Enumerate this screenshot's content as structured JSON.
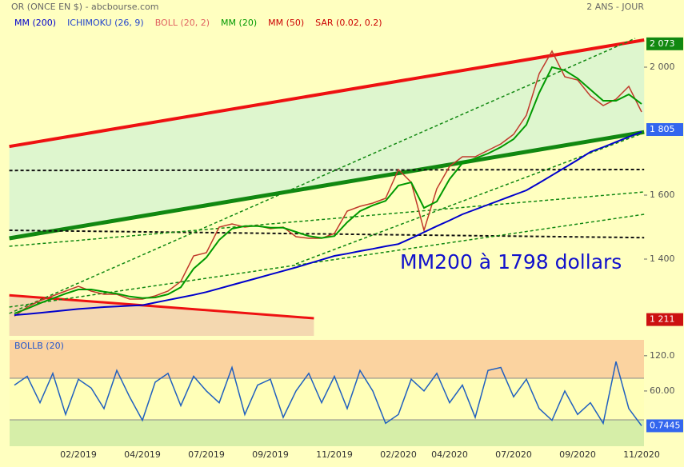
{
  "chart_data": [
    {
      "type": "line",
      "title": "OR (ONCE EN $) - abcbourse.com",
      "subtitle": "2 ANS - JOUR",
      "categories": [
        null,
        null,
        null,
        null,
        null,
        "02/2019",
        null,
        null,
        null,
        null,
        "04/2019",
        null,
        null,
        null,
        null,
        "07/2019",
        null,
        null,
        null,
        null,
        "09/2019",
        null,
        null,
        null,
        null,
        "11/2019",
        null,
        null,
        null,
        null,
        "02/2020",
        null,
        null,
        null,
        "04/2020",
        null,
        null,
        null,
        null,
        "07/2020",
        null,
        null,
        null,
        null,
        "09/2020",
        null,
        null,
        null,
        null,
        "11/2020"
      ],
      "legend": [
        {
          "name": "MM (200)",
          "color": "#0000cc"
        },
        {
          "name": "ICHIMOKU (26, 9)",
          "color": "#2244cc"
        },
        {
          "name": "BOLL (20, 2)",
          "color": "#e06060"
        },
        {
          "name": "MM (20)",
          "color": "#009900"
        },
        {
          "name": "MM (50)",
          "color": "#cc0000"
        },
        {
          "name": "SAR (0.02, 0.2)",
          "color": "#cc0000"
        }
      ],
      "series": [
        {
          "color": "#c0392b",
          "values": [
            1222,
            1250,
            1270,
            1285,
            1300,
            1315,
            1300,
            1290,
            1290,
            1275,
            1275,
            1285,
            1300,
            1330,
            1410,
            1420,
            1500,
            1510,
            1500,
            1505,
            1495,
            1500,
            1470,
            1465,
            1465,
            1480,
            1550,
            1565,
            1575,
            1590,
            1680,
            1640,
            1490,
            1620,
            1690,
            1720,
            1720,
            1740,
            1760,
            1790,
            1850,
            1980,
            2050,
            1970,
            1960,
            1910,
            1880,
            1900,
            1940,
            1860
          ]
        },
        {
          "color": "#009900",
          "values": [
            1230,
            1245,
            1262,
            1277,
            1292,
            1305,
            1305,
            1298,
            1292,
            1283,
            1278,
            1280,
            1290,
            1312,
            1370,
            1405,
            1460,
            1495,
            1503,
            1503,
            1498,
            1498,
            1485,
            1472,
            1466,
            1472,
            1515,
            1550,
            1568,
            1582,
            1630,
            1640,
            1560,
            1580,
            1650,
            1700,
            1715,
            1730,
            1750,
            1775,
            1820,
            1920,
            2000,
            1990,
            1965,
            1930,
            1895,
            1895,
            1915,
            1885
          ]
        },
        {
          "color": "#0000cc",
          "values": [
            1225,
            1228,
            1232,
            1236,
            1240,
            1244,
            1247,
            1250,
            1252,
            1254,
            1256,
            1264,
            1272,
            1280,
            1288,
            1297,
            1308,
            1319,
            1330,
            1341,
            1352,
            1363,
            1374,
            1386,
            1398,
            1410,
            1417,
            1425,
            1432,
            1440,
            1447,
            1465,
            1484,
            1503,
            1521,
            1540,
            1555,
            1570,
            1585,
            1600,
            1615,
            1638,
            1662,
            1686,
            1710,
            1735,
            1750,
            1766,
            1782,
            1798
          ]
        }
      ],
      "trendlines": [
        {
          "color": "#ee1111",
          "width": 4,
          "x": [
            -0.4,
            49.2
          ],
          "y": [
            1752,
            2085
          ]
        },
        {
          "color": "#118811",
          "width": 5,
          "x": [
            -0.4,
            49.2
          ],
          "y": [
            1465,
            1797
          ]
        },
        {
          "color": "#ee1111",
          "width": 3,
          "x": [
            -0.4,
            23.4
          ],
          "y": [
            1287,
            1215
          ]
        },
        {
          "color": "#111111",
          "width": 2,
          "dash": true,
          "x": [
            -0.4,
            49.2
          ],
          "y": [
            1677,
            1680
          ]
        },
        {
          "color": "#111111",
          "width": 2,
          "dash": true,
          "x": [
            -0.4,
            49.2
          ],
          "y": [
            1490,
            1467
          ]
        },
        {
          "color": "#118811",
          "width": 1.5,
          "dash": true,
          "x": [
            -0.4,
            48.5
          ],
          "y": [
            1230,
            2090
          ]
        },
        {
          "color": "#118811",
          "width": 1.5,
          "dash": true,
          "x": [
            -0.4,
            49.2
          ],
          "y": [
            1250,
            1540
          ]
        },
        {
          "color": "#118811",
          "width": 1.5,
          "dash": true,
          "x": [
            -0.4,
            49.2
          ],
          "y": [
            1440,
            1610
          ]
        },
        {
          "color": "#118811",
          "width": 1.5,
          "dash": true,
          "x": [
            22,
            49.2
          ],
          "y": [
            1385,
            1795
          ]
        }
      ],
      "ylim": [
        1160,
        2180
      ],
      "yticks": [
        {
          "value": 2000,
          "label": "2 000"
        },
        {
          "value": 1600,
          "label": "1 600"
        },
        {
          "value": 1400,
          "label": "1 400"
        }
      ],
      "price_labels": [
        {
          "value": 2073,
          "label": "2 073",
          "color": "#118811"
        },
        {
          "value": 1805,
          "label": "1 805",
          "color": "#3366ee"
        },
        {
          "value": 1211,
          "label": "1 211",
          "color": "#cc1111"
        }
      ],
      "annotation": "MM200 à 1798 dollars"
    },
    {
      "type": "line",
      "title": "BOLLB (20)",
      "series": [
        {
          "color": "#1f5fbf",
          "values": [
            70,
            85,
            40,
            90,
            20,
            80,
            65,
            30,
            95,
            50,
            10,
            75,
            90,
            35,
            85,
            60,
            40,
            100,
            20,
            70,
            80,
            15,
            60,
            90,
            40,
            85,
            30,
            95,
            60,
            5,
            20,
            80,
            60,
            90,
            40,
            70,
            15,
            95,
            100,
            50,
            80,
            30,
            10,
            60,
            20,
            40,
            5,
            110,
            30,
            0.7445
          ]
        }
      ],
      "ylim": [
        -34,
        147
      ],
      "yticks": [
        {
          "value": 120,
          "label": "120.0"
        },
        {
          "value": 60,
          "label": "60.00"
        }
      ],
      "last_value": 0.7445
    }
  ]
}
